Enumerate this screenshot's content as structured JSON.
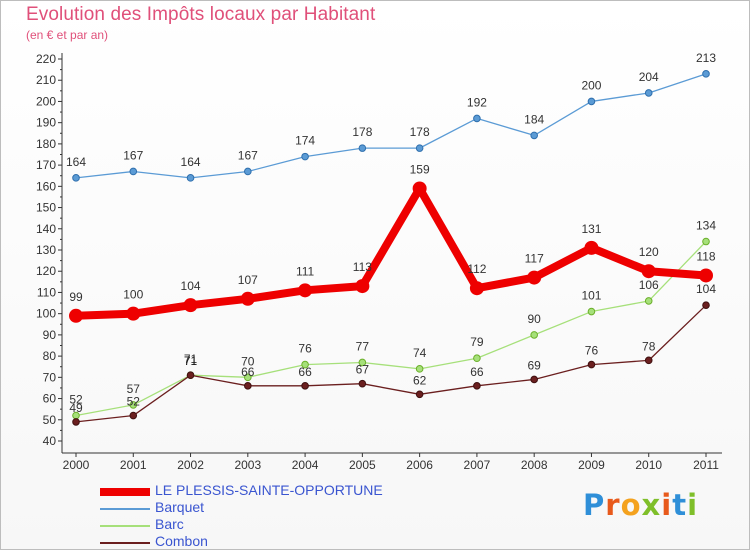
{
  "header": {
    "title": "Evolution des Impôts locaux par Habitant",
    "subtitle": "(en € et par an)"
  },
  "logo": {
    "text": "Proxiti"
  },
  "chart_data": {
    "type": "line",
    "title": "Evolution des Impôts locaux par Habitant",
    "subtitle": "(en € et par an)",
    "xlabel": "",
    "ylabel": "",
    "x": [
      "2000",
      "2001",
      "2002",
      "2003",
      "2004",
      "2005",
      "2006",
      "2007",
      "2008",
      "2009",
      "2010",
      "2011"
    ],
    "ylim": [
      40,
      220
    ],
    "ytick_step": 10,
    "grid": false,
    "legend_position": "bottom-left",
    "series": [
      {
        "name": "LE PLESSIS-SAINTE-OPPORTUNE",
        "color": "#ee0000",
        "thick": true,
        "values": [
          99,
          100,
          104,
          107,
          111,
          113,
          159,
          112,
          117,
          131,
          120,
          118
        ]
      },
      {
        "name": "Barquet",
        "color": "#5b9bd5",
        "thick": false,
        "values": [
          164,
          167,
          164,
          167,
          174,
          178,
          178,
          192,
          184,
          200,
          204,
          213
        ]
      },
      {
        "name": "Barc",
        "color": "#a6e07a",
        "thick": false,
        "values": [
          52,
          57,
          71,
          70,
          76,
          77,
          74,
          79,
          90,
          101,
          106,
          134
        ]
      },
      {
        "name": "Combon",
        "color": "#6b1f1f",
        "thick": false,
        "values": [
          49,
          52,
          71,
          66,
          66,
          67,
          62,
          66,
          69,
          76,
          78,
          104
        ]
      }
    ]
  }
}
